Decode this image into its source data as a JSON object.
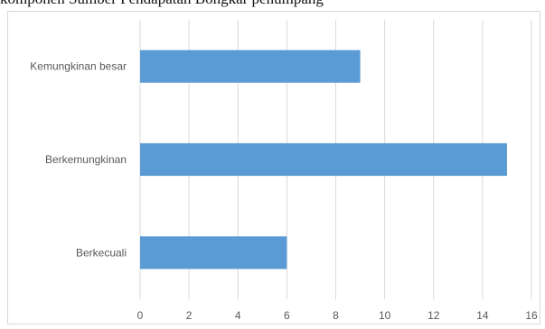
{
  "caption": "komponen Sumber Pendapatan Bongkar penumpang",
  "chart_data": {
    "type": "bar",
    "orientation": "horizontal",
    "categories": [
      "Kemungkinan besar",
      "Berkemungkinan",
      "Berkecuali"
    ],
    "values": [
      9,
      15,
      6
    ],
    "xlim": [
      0,
      16
    ],
    "xticks": [
      0,
      2,
      4,
      6,
      8,
      10,
      12,
      14,
      16
    ],
    "grid": true,
    "colors": {
      "bar": "#5b9bd5",
      "grid": "#d9d9d9",
      "text": "#595959"
    }
  }
}
